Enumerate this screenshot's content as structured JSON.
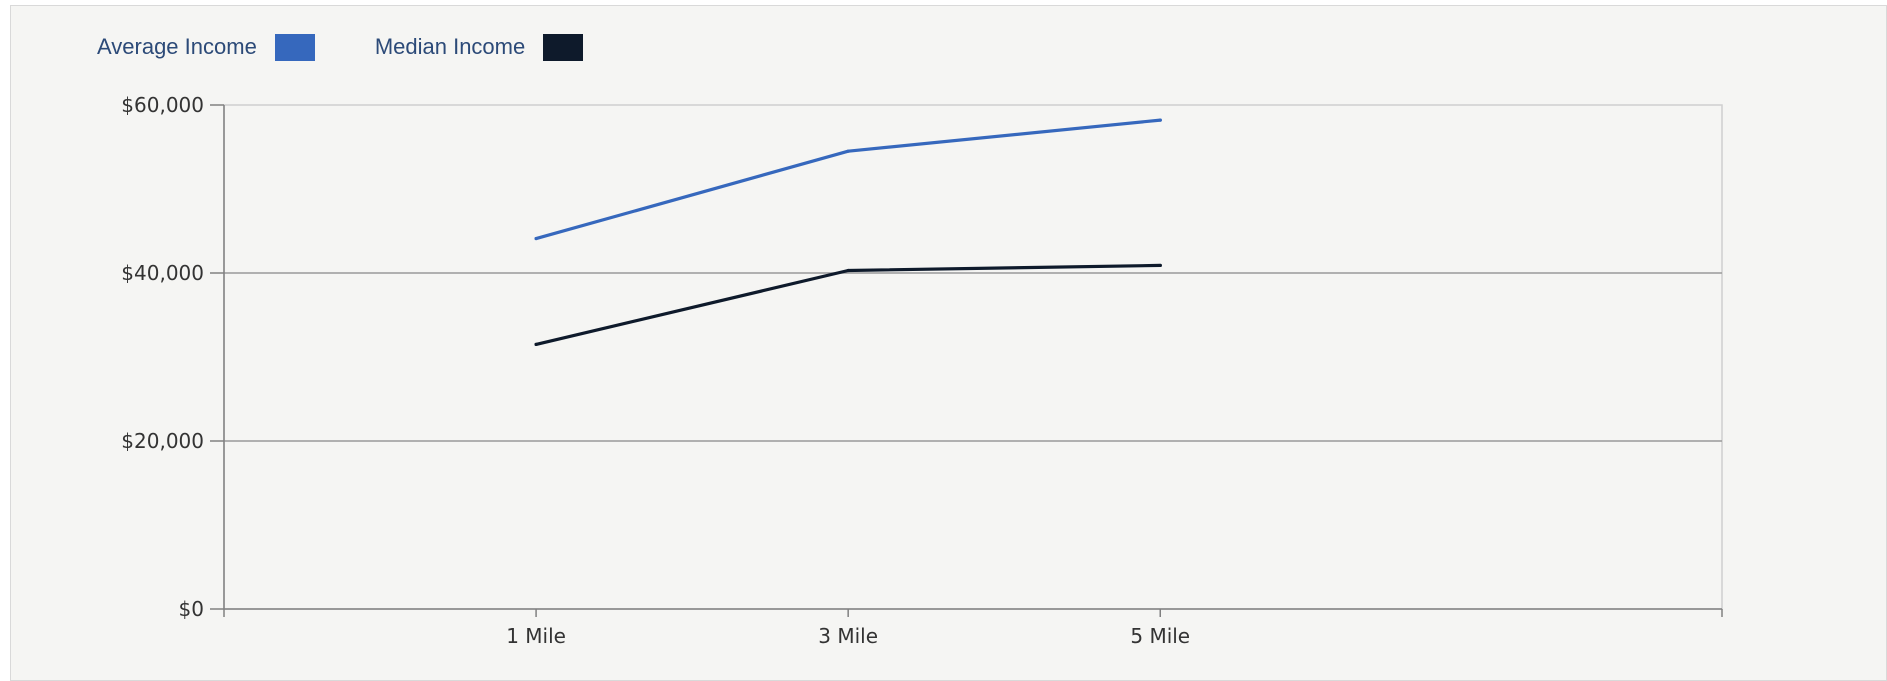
{
  "chart_data": {
    "type": "line",
    "title": "",
    "xlabel": "",
    "ylabel": "",
    "categories": [
      "1 Mile",
      "3 Mile",
      "5 Mile"
    ],
    "series": [
      {
        "name": "Average Income",
        "color": "#3668bd",
        "values": [
          44100,
          54500,
          58200
        ]
      },
      {
        "name": "Median Income",
        "color": "#0e1a2b",
        "values": [
          31500,
          40300,
          40900
        ]
      }
    ],
    "ylim": [
      0,
      60000
    ],
    "yticks": [
      0,
      20000,
      40000,
      60000
    ],
    "ytick_labels": [
      "$0",
      "$20,000",
      "$40,000",
      "$60,000"
    ],
    "grid": true,
    "legend_position": "top-left"
  }
}
